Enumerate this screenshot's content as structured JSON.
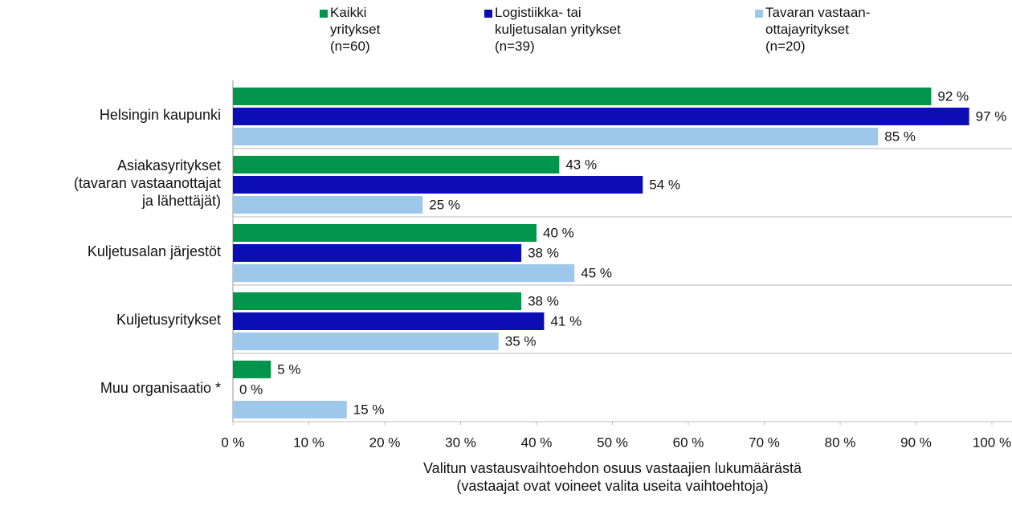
{
  "chart_data": {
    "type": "bar",
    "orientation": "horizontal",
    "categories": [
      "Helsingin kaupunki",
      "Asiakasyritykset\n(tavaran vastaanottajat\nja lähettäjät)",
      "Kuljetusalan järjestöt",
      "Kuljetusyritykset",
      "Muu organisaatio *"
    ],
    "series": [
      {
        "name": "Kaikki\nyritykset\n(n=60)",
        "color": "#00954a",
        "values": [
          92,
          43,
          40,
          38,
          5
        ],
        "value_labels": [
          "92 %",
          "43 %",
          "40 %",
          "38 %",
          "5 %"
        ]
      },
      {
        "name": "Logistiikka- tai\nkuljetusalan yritykset\n(n=39)",
        "color": "#0d0db5",
        "values": [
          97,
          54,
          38,
          41,
          0
        ],
        "value_labels": [
          "97 %",
          "54 %",
          "38 %",
          "41 %",
          "0 %"
        ]
      },
      {
        "name": "Tavaran vastaan-\nottajayritykset\n(n=20)",
        "color": "#9dc8eb",
        "values": [
          85,
          25,
          45,
          35,
          15
        ],
        "value_labels": [
          "85 %",
          "25 %",
          "45 %",
          "35 %",
          "15 %"
        ]
      }
    ],
    "xlim": [
      0,
      100
    ],
    "xticks": [
      {
        "value": 0,
        "label": "0 %"
      },
      {
        "value": 10,
        "label": "10 %"
      },
      {
        "value": 20,
        "label": "20 %"
      },
      {
        "value": 30,
        "label": "30 %"
      },
      {
        "value": 40,
        "label": "40 %"
      },
      {
        "value": 50,
        "label": "50 %"
      },
      {
        "value": 60,
        "label": "60 %"
      },
      {
        "value": 70,
        "label": "70 %"
      },
      {
        "value": 80,
        "label": "80 %"
      },
      {
        "value": 90,
        "label": "90 %"
      },
      {
        "value": 100,
        "label": "100 %"
      }
    ],
    "xlabel": "Valitun vastausvaihtoehdon osuus vastaajien lukumäärästä\n(vastaajat ovat voineet valita useita vaihtoehtoja)",
    "legend": "top"
  }
}
